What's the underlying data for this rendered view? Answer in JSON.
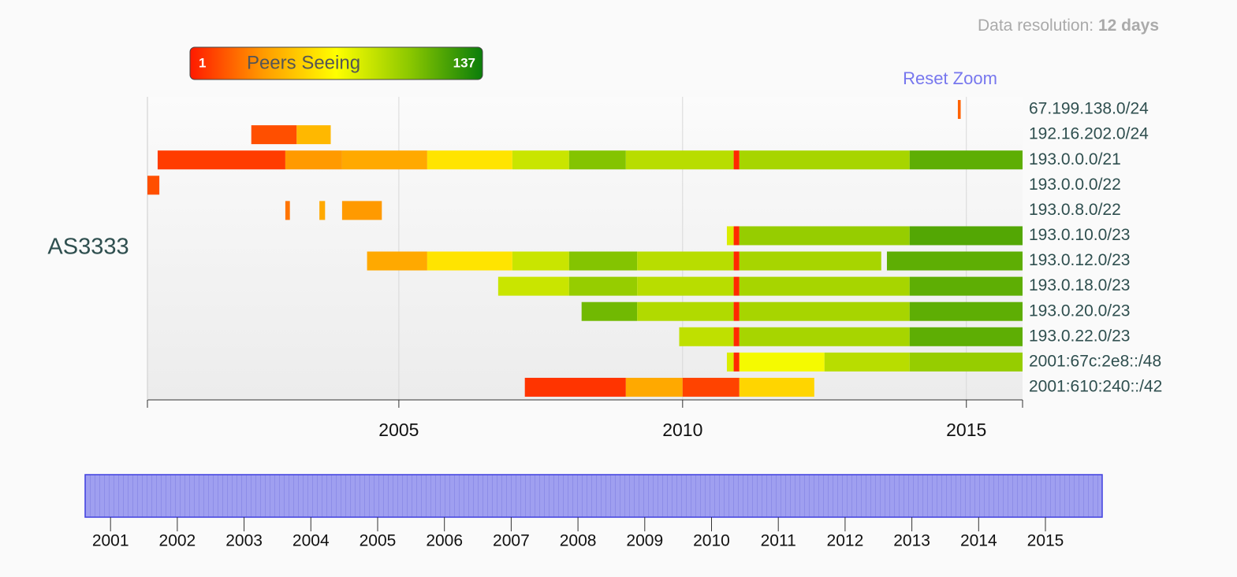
{
  "chart_data": {
    "type": "timeline",
    "resolution_label": "Data resolution:",
    "resolution_value": "12 days",
    "reset_zoom": "Reset Zoom",
    "group_label": "AS3333",
    "legend": {
      "title": "Peers Seeing",
      "range": [
        1,
        137
      ],
      "color_stops": [
        "#ff1a00",
        "#ff9a00",
        "#ffff00",
        "#8cc800",
        "#0a7d0a"
      ]
    },
    "xlim": [
      2000.57,
      2015.99
    ],
    "xticks": [
      2005,
      2010,
      2015
    ],
    "grid": true,
    "rows": [
      {
        "label": "67.199.138.0/24",
        "segments": [
          {
            "start": 2014.85,
            "end": 2014.9,
            "peers": 20
          }
        ]
      },
      {
        "label": "192.16.202.0/24",
        "segments": [
          {
            "start": 2002.4,
            "end": 2003.2,
            "peers": 15
          },
          {
            "start": 2003.2,
            "end": 2003.8,
            "peers": 45
          }
        ]
      },
      {
        "label": "193.0.0.0/21",
        "segments": [
          {
            "start": 2000.75,
            "end": 2003.0,
            "peers": 10
          },
          {
            "start": 2003.0,
            "end": 2004.0,
            "peers": 35
          },
          {
            "start": 2004.0,
            "end": 2005.5,
            "peers": 40
          },
          {
            "start": 2005.5,
            "end": 2007.0,
            "peers": 60
          },
          {
            "start": 2007.0,
            "end": 2008.0,
            "peers": 85
          },
          {
            "start": 2008.0,
            "end": 2009.0,
            "peers": 105
          },
          {
            "start": 2009.0,
            "end": 2010.9,
            "peers": 90
          },
          {
            "start": 2010.9,
            "end": 2011.0,
            "peers": 5
          },
          {
            "start": 2011.0,
            "end": 2014.0,
            "peers": 95
          },
          {
            "start": 2014.0,
            "end": 2015.99,
            "peers": 115
          }
        ]
      },
      {
        "label": "193.0.0.0/22",
        "segments": [
          {
            "start": 2000.57,
            "end": 2000.78,
            "peers": 15
          }
        ]
      },
      {
        "label": "193.0.8.0/22",
        "segments": [
          {
            "start": 2003.0,
            "end": 2003.08,
            "peers": 25
          },
          {
            "start": 2003.6,
            "end": 2003.7,
            "peers": 40
          },
          {
            "start": 2004.0,
            "end": 2004.7,
            "peers": 35
          }
        ]
      },
      {
        "label": "193.0.10.0/23",
        "segments": [
          {
            "start": 2010.78,
            "end": 2010.9,
            "peers": 80
          },
          {
            "start": 2010.9,
            "end": 2011.0,
            "peers": 5
          },
          {
            "start": 2011.0,
            "end": 2014.0,
            "peers": 100
          },
          {
            "start": 2014.0,
            "end": 2015.99,
            "peers": 118
          }
        ]
      },
      {
        "label": "193.0.12.0/23",
        "segments": [
          {
            "start": 2004.44,
            "end": 2005.5,
            "peers": 40
          },
          {
            "start": 2005.5,
            "end": 2007.0,
            "peers": 60
          },
          {
            "start": 2007.0,
            "end": 2008.0,
            "peers": 85
          },
          {
            "start": 2008.0,
            "end": 2009.2,
            "peers": 105
          },
          {
            "start": 2009.2,
            "end": 2010.9,
            "peers": 90
          },
          {
            "start": 2010.9,
            "end": 2011.0,
            "peers": 5
          },
          {
            "start": 2011.0,
            "end": 2013.5,
            "peers": 95
          },
          {
            "start": 2013.6,
            "end": 2015.99,
            "peers": 115
          }
        ]
      },
      {
        "label": "193.0.18.0/23",
        "segments": [
          {
            "start": 2006.75,
            "end": 2008.0,
            "peers": 85
          },
          {
            "start": 2008.0,
            "end": 2009.2,
            "peers": 100
          },
          {
            "start": 2009.2,
            "end": 2010.9,
            "peers": 90
          },
          {
            "start": 2010.9,
            "end": 2011.0,
            "peers": 5
          },
          {
            "start": 2011.0,
            "end": 2014.0,
            "peers": 95
          },
          {
            "start": 2014.0,
            "end": 2015.99,
            "peers": 115
          }
        ]
      },
      {
        "label": "193.0.20.0/23",
        "segments": [
          {
            "start": 2008.22,
            "end": 2009.2,
            "peers": 110
          },
          {
            "start": 2009.2,
            "end": 2010.9,
            "peers": 92
          },
          {
            "start": 2010.9,
            "end": 2011.0,
            "peers": 5
          },
          {
            "start": 2011.0,
            "end": 2014.0,
            "peers": 95
          },
          {
            "start": 2014.0,
            "end": 2015.99,
            "peers": 115
          }
        ]
      },
      {
        "label": "193.0.22.0/23",
        "segments": [
          {
            "start": 2009.94,
            "end": 2010.9,
            "peers": 88
          },
          {
            "start": 2010.9,
            "end": 2011.0,
            "peers": 5
          },
          {
            "start": 2011.0,
            "end": 2014.0,
            "peers": 95
          },
          {
            "start": 2014.0,
            "end": 2015.99,
            "peers": 115
          }
        ]
      },
      {
        "label": "2001:67c:2e8::/48",
        "segments": [
          {
            "start": 2010.78,
            "end": 2010.9,
            "peers": 80
          },
          {
            "start": 2010.9,
            "end": 2011.0,
            "peers": 5
          },
          {
            "start": 2011.0,
            "end": 2012.5,
            "peers": 72
          },
          {
            "start": 2012.5,
            "end": 2014.0,
            "peers": 90
          },
          {
            "start": 2014.0,
            "end": 2015.99,
            "peers": 100
          }
        ]
      },
      {
        "label": "2001:610:240::/42",
        "segments": [
          {
            "start": 2007.22,
            "end": 2009.0,
            "peers": 8
          },
          {
            "start": 2009.0,
            "end": 2010.0,
            "peers": 40
          },
          {
            "start": 2010.0,
            "end": 2011.0,
            "peers": 12
          },
          {
            "start": 2011.0,
            "end": 2012.32,
            "peers": 55
          }
        ]
      }
    ],
    "navigator": {
      "xlim": [
        2000.62,
        2015.85
      ],
      "xticks": [
        2001,
        2002,
        2003,
        2004,
        2005,
        2006,
        2007,
        2008,
        2009,
        2010,
        2011,
        2012,
        2013,
        2014,
        2015
      ]
    }
  }
}
